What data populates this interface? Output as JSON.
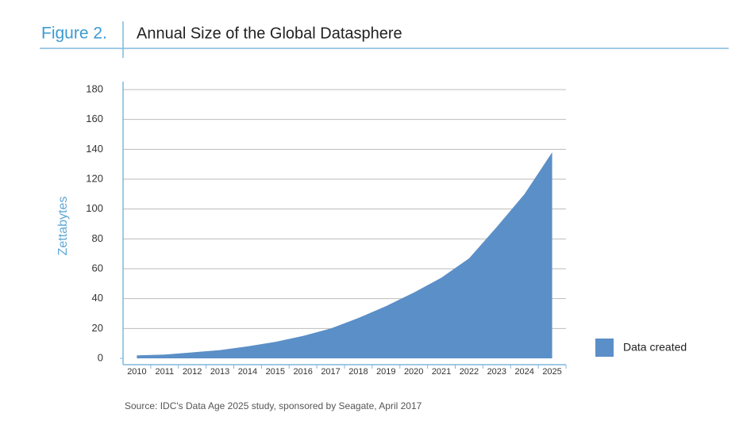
{
  "header": {
    "figure": "Figure 2.",
    "title": "Annual Size of the Global Datasphere"
  },
  "chart_data": {
    "type": "area",
    "y_label": "Zettabytes",
    "categories": [
      "2010",
      "2011",
      "2012",
      "2013",
      "2014",
      "2015",
      "2016",
      "2017",
      "2018",
      "2019",
      "2020",
      "2021",
      "2022",
      "2023",
      "2024",
      "2025"
    ],
    "series": [
      {
        "name": "Data created",
        "color": "#5b8fc7",
        "values": [
          2,
          2.5,
          4,
          5.5,
          8,
          11,
          15,
          20,
          27,
          35,
          44,
          54,
          67,
          88,
          110,
          138
        ]
      }
    ],
    "ylim": [
      0,
      180
    ],
    "yticks": [
      0,
      20,
      40,
      60,
      80,
      100,
      120,
      140,
      160,
      180
    ],
    "grid": true,
    "legend": "right"
  },
  "source": "Source: IDC's Data Age 2025 study, sponsored by Seagate, April 2017"
}
